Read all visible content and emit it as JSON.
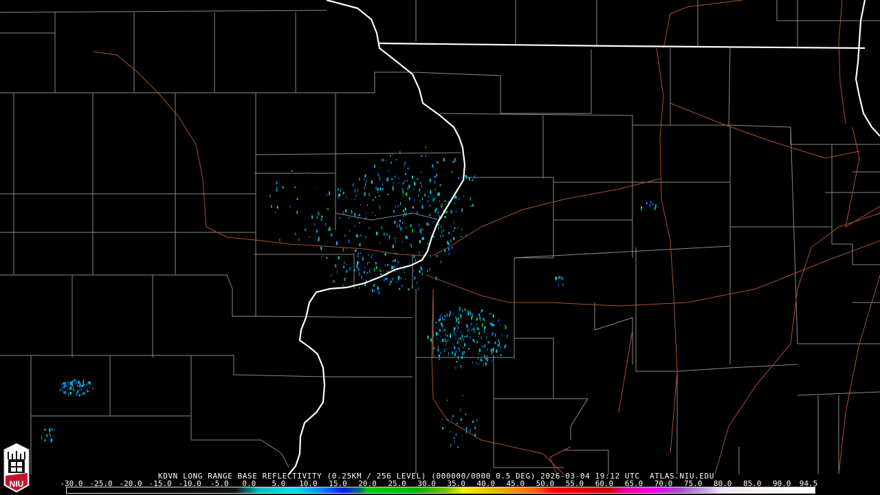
{
  "product_title": "KDVN LONG RANGE BASE REFLECTIVITY (0.25KM / 256 LEVEL) (000000/0000 0.5 DEG) 2026-03-04 19:12 UTC  ATLAS.NIU.EDU",
  "logo_text": "NIU",
  "colorbar": {
    "tick_labels": [
      "-30.0",
      "-25.0",
      "-20.0",
      "-15.0",
      "-10.0",
      "-5.0",
      "0.0",
      "5.0",
      "10.0",
      "15.0",
      "20.0",
      "25.0",
      "30.0",
      "35.0",
      "40.0",
      "45.0",
      "50.0",
      "55.0",
      "60.0",
      "65.0",
      "70.0",
      "75.0",
      "80.0",
      "85.0",
      "90.0",
      "94.5"
    ],
    "range": [
      -30,
      94.5
    ],
    "stops": [
      {
        "value": -30,
        "color": "#000000"
      },
      {
        "value": -2,
        "color": "#0a1414"
      },
      {
        "value": 0,
        "color": "#006a6a"
      },
      {
        "value": 2,
        "color": "#00c0c0"
      },
      {
        "value": 8,
        "color": "#00e0f0"
      },
      {
        "value": 12,
        "color": "#0090f0"
      },
      {
        "value": 16,
        "color": "#0020e0"
      },
      {
        "value": 19,
        "color": "#007070"
      },
      {
        "value": 20,
        "color": "#00d000"
      },
      {
        "value": 28,
        "color": "#00b000"
      },
      {
        "value": 33,
        "color": "#70c000"
      },
      {
        "value": 36,
        "color": "#f0f000"
      },
      {
        "value": 42,
        "color": "#e8b000"
      },
      {
        "value": 48,
        "color": "#ff6000"
      },
      {
        "value": 51,
        "color": "#ff0000"
      },
      {
        "value": 60,
        "color": "#c00000"
      },
      {
        "value": 63,
        "color": "#e000a0"
      },
      {
        "value": 68,
        "color": "#f000f0"
      },
      {
        "value": 72,
        "color": "#a050d0"
      },
      {
        "value": 76,
        "color": "#c0a0e0"
      },
      {
        "value": 79,
        "color": "#f0e8f8"
      },
      {
        "value": 94.5,
        "color": "#ffffff"
      }
    ]
  },
  "colors": {
    "county_lines": "#8a8a8a",
    "state_lines": "#ffffff",
    "highways": "#b0502a",
    "background": "#000000",
    "logo_red": "#c8102e"
  }
}
